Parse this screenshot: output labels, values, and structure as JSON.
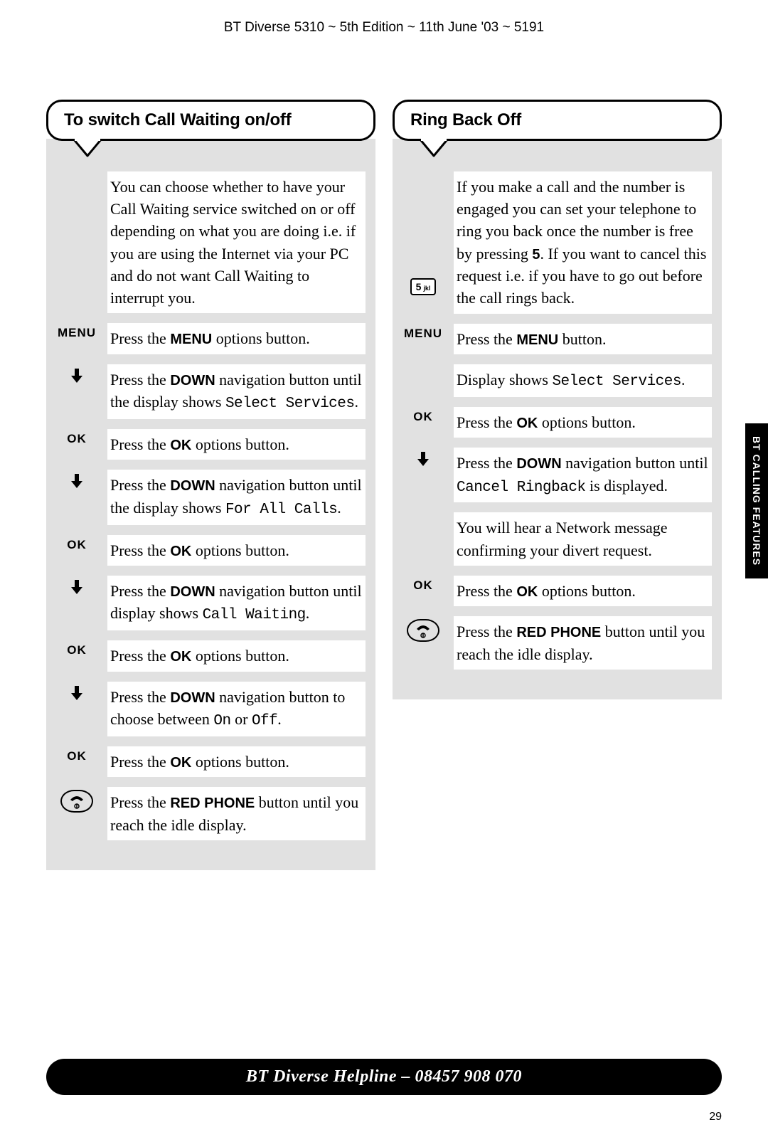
{
  "header": "BT Diverse 5310 ~ 5th Edition ~ 11th June '03 ~ 5191",
  "side_tab": "BT CALLING FEATURES",
  "footer": "BT Diverse Helpline – 08457 908 070",
  "page_num": "29",
  "left": {
    "title": "To switch Call Waiting on/off",
    "intro": "You can choose whether to have your Call Waiting service switched on or off depending on what you are doing i.e. if you are using the Internet via your PC and do not want Call Waiting to interrupt you.",
    "steps": [
      {
        "label": "MENU",
        "type": "text",
        "pre": "Press the ",
        "bold": "MENU",
        "post": " options button."
      },
      {
        "label": "",
        "type": "down",
        "pre": "Press the ",
        "bold": "DOWN",
        "post": " navigation button until the display shows ",
        "mono": "Select Services",
        "tail": "."
      },
      {
        "label": "OK",
        "type": "text",
        "pre": "Press the ",
        "bold": "OK",
        "post": " options button."
      },
      {
        "label": "",
        "type": "down",
        "pre": "Press the ",
        "bold": "DOWN",
        "post": " navigation button until the display shows ",
        "mono": "For All Calls",
        "tail": "."
      },
      {
        "label": "OK",
        "type": "text",
        "pre": "Press the ",
        "bold": "OK",
        "post": " options button."
      },
      {
        "label": "",
        "type": "down",
        "pre": "Press the ",
        "bold": "DOWN",
        "post": " navigation button until display shows ",
        "mono": "Call Waiting",
        "tail": "."
      },
      {
        "label": "OK",
        "type": "text",
        "pre": "Press the ",
        "bold": "OK",
        "post": " options button."
      },
      {
        "label": "",
        "type": "down",
        "pre": "Press the ",
        "bold": "DOWN",
        "post": " navigation button to choose between ",
        "mono": "On",
        "mid": " or ",
        "mono2": "Off",
        "tail": "."
      },
      {
        "label": "OK",
        "type": "text",
        "pre": "Press the ",
        "bold": "OK",
        "post": " options button."
      },
      {
        "label": "",
        "type": "phone",
        "pre": "Press the ",
        "bold": "RED PHONE",
        "post": " button until you reach the idle display."
      }
    ]
  },
  "right": {
    "title": "Ring Back Off",
    "intro_pre": "If you make a call and the number is engaged you can set your telephone to ring you back once the number is free by pressing ",
    "intro_bold": "5",
    "intro_post": ". If you want to cancel this request i.e. if you have to go out before the call rings back.",
    "key5": {
      "num": "5",
      "sub": "jkl"
    },
    "steps": [
      {
        "label": "MENU",
        "type": "text",
        "pre": "Press the ",
        "bold": "MENU",
        "post": " button."
      },
      {
        "label": "",
        "type": "plain",
        "text_pre": "Display shows ",
        "mono": "Select Services",
        "tail": "."
      },
      {
        "label": "OK",
        "type": "text",
        "pre": "Press the ",
        "bold": "OK",
        "post": " options button."
      },
      {
        "label": "",
        "type": "down",
        "pre": "Press the ",
        "bold": "DOWN",
        "post": " navigation button until ",
        "mono": "Cancel Ringback",
        "tail": " is displayed."
      },
      {
        "label": "",
        "type": "plain",
        "text_pre": "You will hear a Network message confirming your divert request."
      },
      {
        "label": "OK",
        "type": "text",
        "pre": "Press the ",
        "bold": "OK",
        "post": " options button."
      },
      {
        "label": "",
        "type": "phone",
        "pre": "Press the ",
        "bold": "RED PHONE",
        "post": " button until you reach the idle display."
      }
    ]
  }
}
